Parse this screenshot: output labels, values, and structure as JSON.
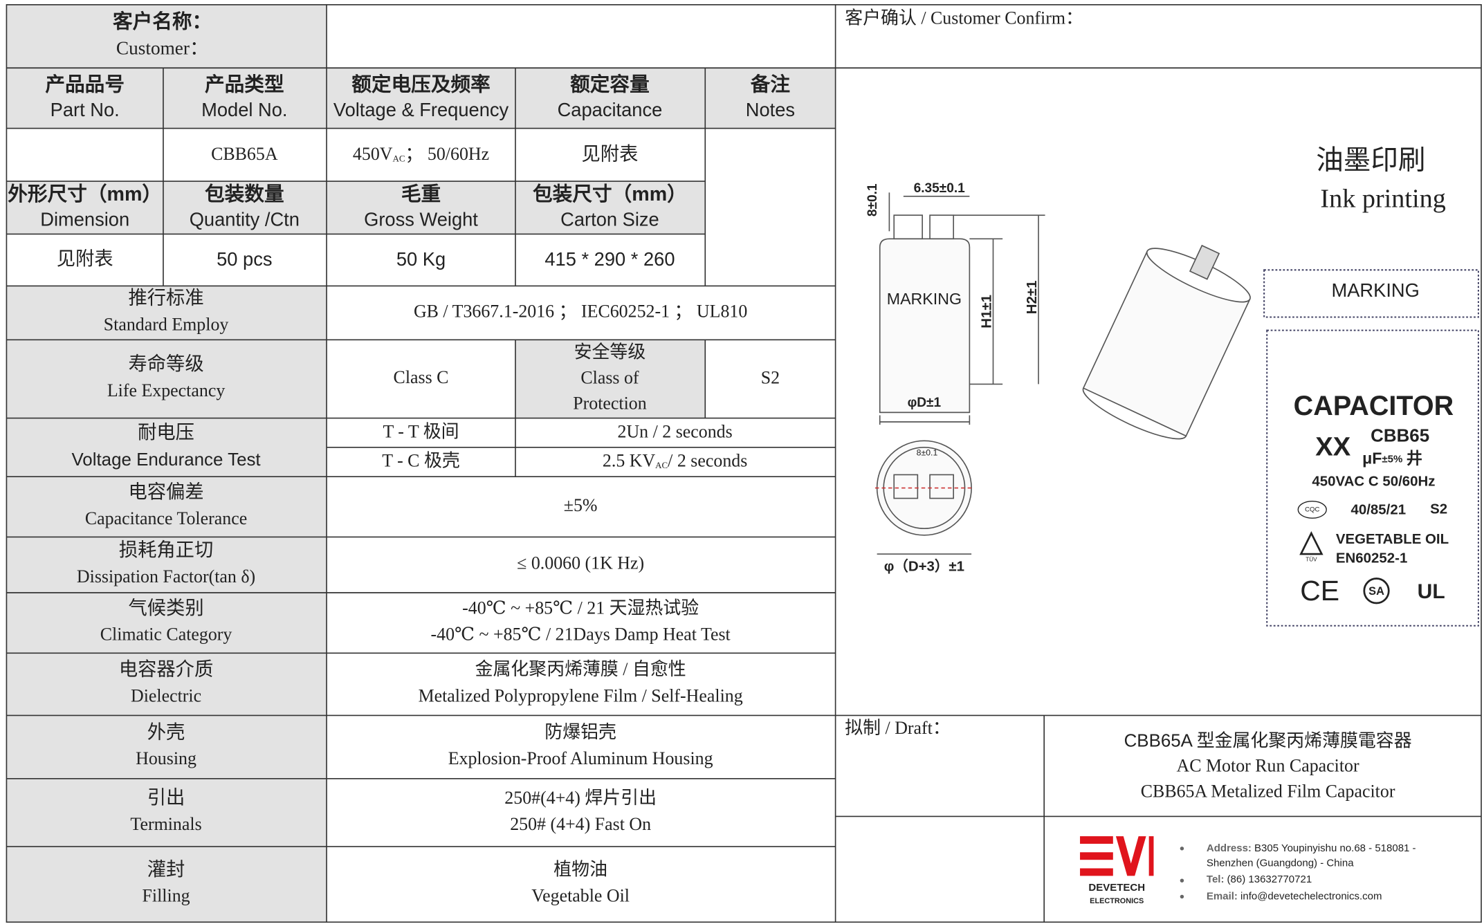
{
  "customer": {
    "cn": "客户名称：",
    "en": "Customer："
  },
  "customer_confirm": "客户确认 / Customer Confirm：",
  "header": [
    {
      "cn": "产品品号",
      "en": "Part No."
    },
    {
      "cn": "产品类型",
      "en": "Model No."
    },
    {
      "cn": "额定电压及频率",
      "en": "Voltage & Frequency"
    },
    {
      "cn": "额定容量",
      "en": "Capacitance"
    },
    {
      "cn": "备注",
      "en": "Notes"
    }
  ],
  "product": {
    "model": "CBB65A",
    "voltage": {
      "value": "450V",
      "sub": "AC",
      "rest": "； 50/60Hz"
    },
    "capacitance": "见附表"
  },
  "packing_header": [
    {
      "cn": "外形尺寸（mm）",
      "en": "Dimension"
    },
    {
      "cn": "包装数量",
      "en": "Quantity /Ctn"
    },
    {
      "cn": "毛重",
      "en": "Gross Weight"
    },
    {
      "cn": "包装尺寸（mm）",
      "en": "Carton Size"
    }
  ],
  "packing": [
    "见附表",
    "50 pcs",
    "50 Kg",
    "415 * 290 * 260"
  ],
  "standard": {
    "cn": "推行标准",
    "en": "Standard Employ",
    "value": [
      "GB / T3667.1-2016 ； IEC60252-1 ； UL810"
    ]
  },
  "life": {
    "cn": "寿命等级",
    "en": "Life Expectancy",
    "value": [
      "Class C"
    ],
    "safety_label": [
      "安全等级",
      "Class of",
      "Protection"
    ],
    "safety_value": "S2"
  },
  "voltage_test": {
    "cn": "耐电压",
    "en": "Voltage Endurance Test",
    "tt_terms": "T - T 极间",
    "tt_value": "2Un / 2 seconds",
    "tc_terms": "T - C 极壳",
    "tc_value": {
      "value": "2.5 KV",
      "sub": "AC",
      "rest": "/ 2 seconds"
    }
  },
  "tolerance": {
    "cn": "电容偏差",
    "en": "Capacitance Tolerance",
    "value": [
      "±5%"
    ]
  },
  "dissipation": {
    "cn": "损耗角正切",
    "en": "Dissipation Factor(tan δ)",
    "value": [
      "≤ 0.0060 (1K Hz)"
    ]
  },
  "climatic": {
    "cn": "气候类别",
    "en": "Climatic Category",
    "value": [
      "-40℃ ~ +85℃ / 21 天湿热试验",
      "-40℃ ~ +85℃ / 21Days Damp Heat Test"
    ]
  },
  "dielectric": {
    "cn": "电容器介质",
    "en": "Dielectric",
    "value": [
      "金属化聚丙烯薄膜 / 自愈性",
      "Metalized Polypropylene Film / Self-Healing"
    ]
  },
  "housing": {
    "cn": "外壳",
    "en": "Housing",
    "value": [
      "防爆铝壳",
      "Explosion-Proof Aluminum Housing"
    ]
  },
  "terminals": {
    "cn": "引出",
    "en": "Terminals",
    "value": [
      "250#(4+4) 焊片引出",
      "250# (4+4) Fast On"
    ]
  },
  "filling": {
    "cn": "灌封",
    "en": "Filling",
    "value": [
      "植物油",
      "Vegetable Oil"
    ]
  },
  "diagram": {
    "pin_height": "8±0.1",
    "pin_width": "6.35±0.1",
    "marking": "MARKING",
    "h1": "H1±1",
    "h2": "H2±1",
    "diameter": "φD±1",
    "pin_spacing": "8±0.1",
    "cap_diameter": "φ（D+3）±1"
  },
  "ink": {
    "cn": "油墨印刷",
    "en": "Ink printing",
    "marking": "MARKING"
  },
  "label": {
    "title": "CAPACITOR",
    "capacitance": "XX",
    "model": "CBB65",
    "unit": "μF",
    "tolerance": "±5%",
    "symbol": "井",
    "rating": "450VAC  C  50/60Hz",
    "cqc": "CQC",
    "climatic": "40/85/21",
    "safety": "S2",
    "tuv": "TÜV",
    "filling": "VEGETABLE OIL",
    "standard": "EN60252-1",
    "ce": "CE",
    "sa": "SA",
    "ul": "UL"
  },
  "draft": {
    "label": "拟制 / Draft：",
    "title": [
      "CBB65A 型金属化聚丙烯薄膜電容器",
      "AC Motor Run Capacitor",
      "CBB65A Metalized Film Capacitor"
    ]
  },
  "company": {
    "name": "DEVETECH",
    "sub": "ELECTRONICS",
    "address_label": "Address:",
    "address": [
      "B305 Youpinyishu no.68 - 518081 -",
      "Shenzhen (Guangdong) - China"
    ],
    "tel_label": "Tel:",
    "tel": "(86) 13632770721",
    "email_label": "Email:",
    "email": "info@devetechelectronics.com"
  }
}
